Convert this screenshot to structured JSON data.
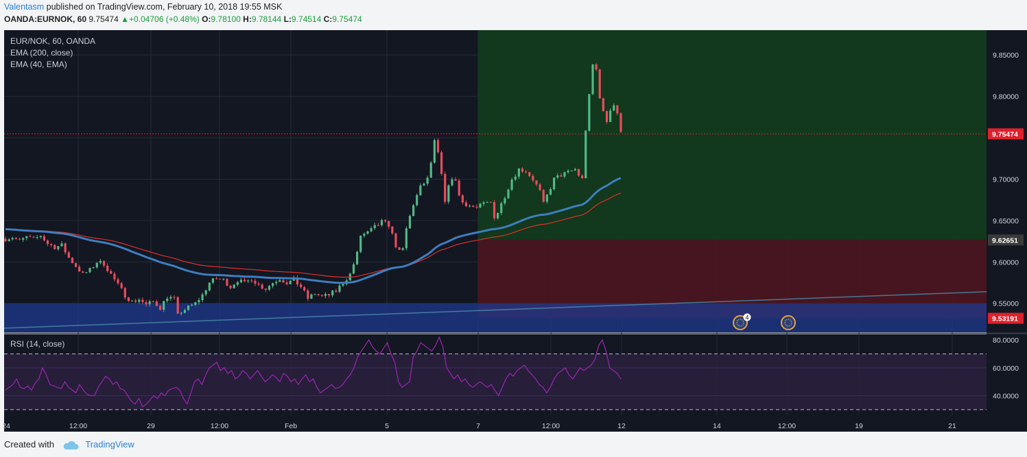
{
  "header": {
    "author": "Valentasm",
    "published_text": "published on TradingView.com, February 10, 2018 19:55 MSK",
    "symbol": "OANDA:EURNOK, 60",
    "last": "9.75474",
    "change": "+0.04706 (+0.48%)",
    "o_label": "O:",
    "o": "9.78100",
    "h_label": "H:",
    "h": "9.78144",
    "l_label": "L:",
    "l": "9.74514",
    "c_label": "C:",
    "c": "9.75474"
  },
  "legend": {
    "symbol_line": "EUR/NOK, 60, OANDA",
    "ema200": "EMA (200, close)",
    "ema40": "EMA (40, EMA)",
    "rsi": "RSI (14, close)"
  },
  "footer": {
    "created_with": "Created with",
    "brand": "TradingView"
  },
  "colors": {
    "background": "#131722",
    "candle_up": "#53b987",
    "candle_down": "#eb4d5c",
    "ema200": "#3e7ebf",
    "ema40": "#e0302a",
    "profit_zone": "#123a1e",
    "loss_zone": "#4a1520",
    "support_zone": "#1f3a8f",
    "rsi": "#9b27af",
    "price_tag": "#e0202c",
    "level_tag": "#3a3a3a"
  },
  "events": {
    "badge_count": "4"
  },
  "chart_data": [
    {
      "type": "candlestick",
      "title": "EUR/NOK, 60, OANDA",
      "x_ticks": [
        "24",
        "12:00",
        "29",
        "12:00",
        "Feb",
        "5",
        "7",
        "12:00",
        "12",
        "14",
        "12:00",
        "19",
        "21"
      ],
      "y_ticks": [
        "9.85000",
        "9.80000",
        "9.70000",
        "9.65000",
        "9.60000",
        "9.55000"
      ],
      "ylim": [
        9.515,
        9.88
      ],
      "price_tags": [
        {
          "label": "9.75474",
          "value": 9.75474,
          "kind": "last"
        },
        {
          "label": "9.62651",
          "value": 9.62651,
          "kind": "level"
        },
        {
          "label": "9.53191",
          "value": 9.53191,
          "kind": "stop"
        }
      ],
      "close_path": [
        [
          0,
          9.628
        ],
        [
          2,
          9.63
        ],
        [
          4,
          9.625
        ],
        [
          6,
          9.63
        ],
        [
          8,
          9.627
        ],
        [
          10,
          9.632
        ],
        [
          12,
          9.622
        ],
        [
          14,
          9.618
        ],
        [
          16,
          9.62
        ],
        [
          18,
          9.605
        ],
        [
          20,
          9.595
        ],
        [
          22,
          9.585
        ],
        [
          24,
          9.59
        ],
        [
          26,
          9.6
        ],
        [
          28,
          9.598
        ],
        [
          30,
          9.585
        ],
        [
          32,
          9.572
        ],
        [
          34,
          9.56
        ],
        [
          36,
          9.552
        ],
        [
          38,
          9.555
        ],
        [
          40,
          9.548
        ],
        [
          42,
          9.552
        ],
        [
          44,
          9.545
        ],
        [
          46,
          9.558
        ],
        [
          48,
          9.555
        ],
        [
          49,
          9.535
        ],
        [
          50,
          9.54
        ],
        [
          52,
          9.545
        ],
        [
          54,
          9.55
        ],
        [
          56,
          9.56
        ],
        [
          58,
          9.575
        ],
        [
          60,
          9.58
        ],
        [
          62,
          9.578
        ],
        [
          64,
          9.57
        ],
        [
          66,
          9.578
        ],
        [
          68,
          9.574
        ],
        [
          70,
          9.58
        ],
        [
          72,
          9.572
        ],
        [
          74,
          9.568
        ],
        [
          76,
          9.575
        ],
        [
          78,
          9.58
        ],
        [
          80,
          9.575
        ],
        [
          82,
          9.578
        ],
        [
          84,
          9.57
        ],
        [
          86,
          9.556
        ],
        [
          88,
          9.562
        ],
        [
          90,
          9.558
        ],
        [
          92,
          9.56
        ],
        [
          94,
          9.565
        ],
        [
          96,
          9.575
        ],
        [
          98,
          9.585
        ],
        [
          100,
          9.61
        ],
        [
          101,
          9.632
        ],
        [
          103,
          9.635
        ],
        [
          105,
          9.642
        ],
        [
          107,
          9.648
        ],
        [
          109,
          9.645
        ],
        [
          111,
          9.62
        ],
        [
          112,
          9.612
        ],
        [
          113,
          9.615
        ],
        [
          114,
          9.64
        ],
        [
          116,
          9.67
        ],
        [
          118,
          9.69
        ],
        [
          120,
          9.7
        ],
        [
          121,
          9.72
        ],
        [
          122,
          9.745
        ],
        [
          123,
          9.73
        ],
        [
          124,
          9.705
        ],
        [
          125,
          9.67
        ],
        [
          126,
          9.695
        ],
        [
          128,
          9.7
        ],
        [
          129,
          9.68
        ],
        [
          130,
          9.672
        ],
        [
          132,
          9.668
        ],
        [
          134,
          9.665
        ],
        [
          136,
          9.67
        ],
        [
          138,
          9.672
        ],
        [
          139,
          9.655
        ],
        [
          140,
          9.66
        ],
        [
          142,
          9.68
        ],
        [
          144,
          9.7
        ],
        [
          146,
          9.712
        ],
        [
          148,
          9.71
        ],
        [
          150,
          9.7
        ],
        [
          152,
          9.685
        ],
        [
          153,
          9.67
        ],
        [
          154,
          9.68
        ],
        [
          156,
          9.7
        ],
        [
          158,
          9.705
        ],
        [
          160,
          9.708
        ],
        [
          162,
          9.712
        ],
        [
          163,
          9.705
        ],
        [
          164,
          9.7
        ],
        [
          165,
          9.76
        ],
        [
          166,
          9.8
        ],
        [
          167,
          9.838
        ],
        [
          168,
          9.832
        ],
        [
          169,
          9.8
        ],
        [
          170,
          9.78
        ],
        [
          171,
          9.77
        ],
        [
          172,
          9.785
        ],
        [
          173,
          9.79
        ],
        [
          174,
          9.78
        ],
        [
          175,
          9.755
        ]
      ]
    },
    {
      "type": "line",
      "title": "RSI (14, close)",
      "y_ticks": [
        "80.0000",
        "60.0000",
        "40.0000"
      ],
      "ylim": [
        26,
        84
      ],
      "bands": {
        "upper": 70,
        "lower": 30
      },
      "values": [
        44,
        46,
        48,
        52,
        46,
        45,
        47,
        44,
        49,
        52,
        60,
        55,
        48,
        47,
        46,
        45,
        50,
        46,
        44,
        42,
        48,
        44,
        41,
        40,
        40,
        46,
        50,
        54,
        52,
        48,
        50,
        45,
        44,
        40,
        36,
        34,
        38,
        32,
        34,
        37,
        40,
        38,
        42,
        40,
        44,
        45,
        46,
        44,
        38,
        34,
        42,
        50,
        52,
        48,
        55,
        60,
        62,
        64,
        58,
        60,
        56,
        58,
        52,
        54,
        58,
        56,
        52,
        55,
        58,
        54,
        50,
        52,
        55,
        53,
        50,
        56,
        54,
        50,
        52,
        48,
        52,
        55,
        50,
        52,
        46,
        42,
        44,
        46,
        48,
        45,
        46,
        48,
        52,
        55,
        60,
        68,
        72,
        76,
        80,
        75,
        72,
        70,
        74,
        78,
        70,
        64,
        50,
        46,
        48,
        50,
        68,
        72,
        78,
        76,
        74,
        72,
        76,
        82,
        75,
        60,
        56,
        52,
        55,
        50,
        52,
        48,
        46,
        48,
        50,
        48,
        46,
        48,
        44,
        40,
        46,
        52,
        56,
        54,
        58,
        60,
        62,
        58,
        55,
        52,
        48,
        46,
        42,
        46,
        52,
        56,
        58,
        60,
        55,
        52,
        56,
        60,
        58,
        60,
        62,
        66,
        76,
        80,
        72,
        60,
        58,
        56,
        52
      ]
    }
  ]
}
